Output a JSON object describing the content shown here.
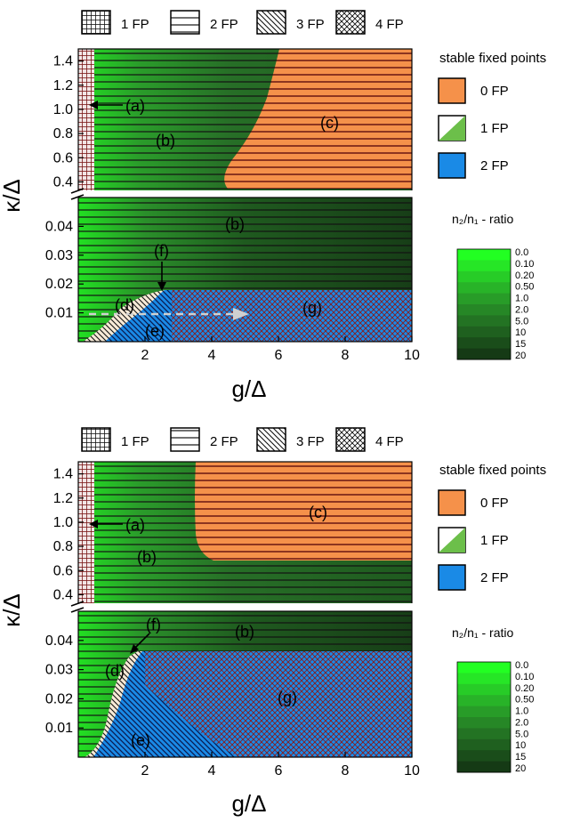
{
  "pattern_legend": {
    "items": [
      {
        "label": "1 FP",
        "pattern": "grid"
      },
      {
        "label": "2 FP",
        "pattern": "horizontal"
      },
      {
        "label": "3 FP",
        "pattern": "diagonal"
      },
      {
        "label": "4 FP",
        "pattern": "crosshatch"
      }
    ]
  },
  "fill_legend": {
    "title": "stable fixed points",
    "items": [
      {
        "label": "0 FP",
        "color": "#f5914a"
      },
      {
        "label": "1 FP",
        "color": "#6cbf4a"
      },
      {
        "label": "2 FP",
        "color": "#1a8ae6"
      }
    ]
  },
  "colorbar": {
    "title": "n₂/n₁ - ratio",
    "ticks": [
      "0.0",
      "0.10",
      "0.20",
      "0.50",
      "1.0",
      "2.0",
      "5.0",
      "10",
      "15",
      "20"
    ],
    "colors": [
      "#22ff22",
      "#26e626",
      "#27cc27",
      "#28b328",
      "#289c28",
      "#268726",
      "#237323",
      "#1f601f",
      "#1a4d1a",
      "#153a15"
    ]
  },
  "chart_data": [
    {
      "type": "heatmap",
      "title": "",
      "xlabel": "g/Δ",
      "ylabel": "κ/Δ",
      "xlim": [
        0,
        10
      ],
      "x_ticks": [
        "2",
        "4",
        "6",
        "8",
        "10"
      ],
      "upper_panel": {
        "ylim": [
          0.3,
          1.5
        ],
        "y_ticks": [
          "0.4",
          "0.6",
          "0.8",
          "1.0",
          "1.2",
          "1.4"
        ]
      },
      "lower_panel": {
        "ylim": [
          0,
          0.05
        ],
        "y_ticks": [
          "0.01",
          "0.02",
          "0.03",
          "0.04"
        ]
      },
      "region_labels": [
        "(a)",
        "(b)",
        "(c)",
        "(b)",
        "(f)",
        "(d)",
        "(g)",
        "(e)"
      ],
      "regions": {
        "a": {
          "x_max": 0.4,
          "fixed_points": 1,
          "stable": 1
        },
        "c": {
          "g_onset": 6.0,
          "kappa_min": 0.4,
          "stable": 0
        },
        "d_e_f_boundary": {
          "g": 2.5,
          "kappa": 0.018
        },
        "g": {
          "kappa_max": 0.018,
          "x_min": 2.5,
          "fixed_points": 4,
          "stable": 2
        }
      }
    },
    {
      "type": "heatmap",
      "title": "",
      "xlabel": "g/Δ",
      "ylabel": "κ/Δ",
      "xlim": [
        0,
        10
      ],
      "x_ticks": [
        "2",
        "4",
        "6",
        "8",
        "10"
      ],
      "upper_panel": {
        "ylim": [
          0.3,
          1.5
        ],
        "y_ticks": [
          "0.4",
          "0.6",
          "0.8",
          "1.0",
          "1.2",
          "1.4"
        ]
      },
      "lower_panel": {
        "ylim": [
          0,
          0.05
        ],
        "y_ticks": [
          "0.01",
          "0.02",
          "0.03",
          "0.04"
        ]
      },
      "region_labels": [
        "(a)",
        "(c)",
        "(b)",
        "(b)",
        "(f)",
        "(d)",
        "(g)",
        "(e)"
      ],
      "regions": {
        "a": {
          "x_max": 0.4,
          "fixed_points": 1,
          "stable": 1
        },
        "c": {
          "g_onset": 3.6,
          "kappa_min": 0.68,
          "stable": 0
        },
        "d_e_f_boundary": {
          "g": 1.6,
          "kappa": 0.036
        },
        "g": {
          "kappa_max": 0.036,
          "x_min": 1.6,
          "fixed_points": 4,
          "stable": 2
        }
      }
    }
  ]
}
